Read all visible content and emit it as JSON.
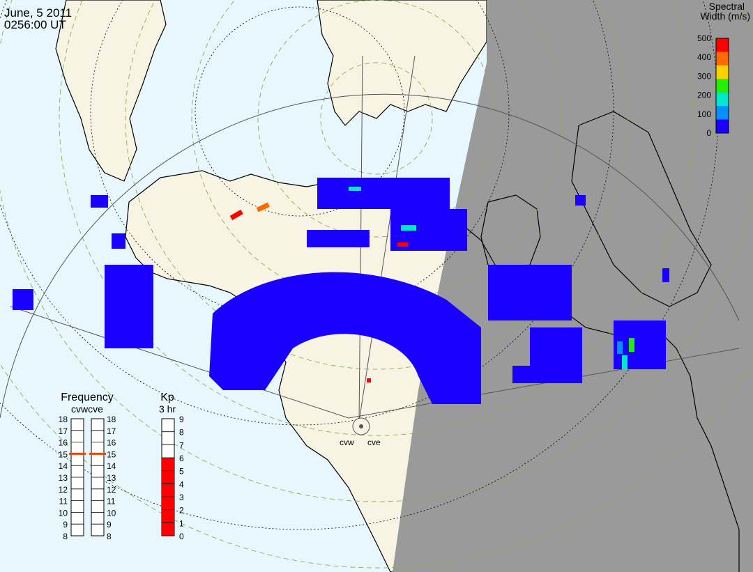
{
  "header": {
    "date": "June, 5 2011",
    "time": "0256:00 UT"
  },
  "colorbar": {
    "title_line1": "Spectral",
    "title_line2": "Width (m/s)",
    "ticks": [
      "500",
      "400",
      "300",
      "200",
      "100",
      "0"
    ],
    "colors": [
      "#ff0000",
      "#ff6a00",
      "#ffd000",
      "#22ee00",
      "#00e8cc",
      "#0090ff",
      "#1a00ff"
    ]
  },
  "radars": {
    "west_label": "cvw",
    "east_label": "cve"
  },
  "frequency_panel": {
    "title": "Frequency",
    "subtitle": "cvwcve",
    "ticks": [
      "18",
      "17",
      "16",
      "15",
      "14",
      "13",
      "12",
      "11",
      "10",
      "9",
      "8"
    ],
    "cvw_value": 15,
    "cve_value": 15
  },
  "kp_panel": {
    "title": "Kp",
    "subtitle": "3 hr",
    "ticks": [
      "9",
      "8",
      "7",
      "6",
      "5",
      "4",
      "3",
      "2",
      "1",
      "0"
    ],
    "value": 6
  },
  "colors": {
    "ocean": "#e8f6fd",
    "land": "#f7f4e4",
    "night": "#9a9a9a",
    "low_width": "#1a00ff",
    "kp_fill": "#ff0000",
    "frequency_marker": "#e04a10"
  }
}
